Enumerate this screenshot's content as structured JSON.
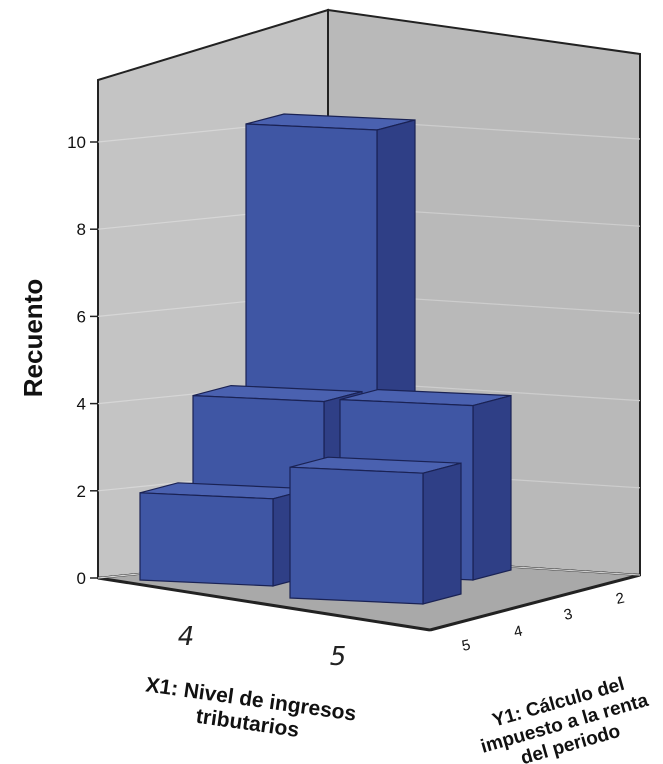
{
  "chart_data": {
    "type": "bar3d",
    "y_axis_label": "Recuento",
    "y_ticks": [
      "0",
      "2",
      "4",
      "6",
      "8",
      "10"
    ],
    "ylim": [
      0,
      10.5
    ],
    "x_axis_label_line1": "X1: Nivel de ingresos",
    "x_axis_label_line2": "tributarios",
    "x_categories": [
      "4",
      "5"
    ],
    "depth_axis_label_line1": "Y1: Cálculo del",
    "depth_axis_label_line2": "impuesto a la renta",
    "depth_axis_label_line3": "del periodo",
    "depth_categories": [
      "5",
      "4",
      "3",
      "2"
    ],
    "bars": [
      {
        "x": "4",
        "y1": "2",
        "count": 10
      },
      {
        "x": "4",
        "y1": "3",
        "count": 4
      },
      {
        "x": "5",
        "y1": "3",
        "count": 4
      },
      {
        "x": "4",
        "y1": "4",
        "count": 2
      },
      {
        "x": "5",
        "y1": "4",
        "count": 3
      }
    ],
    "colors": {
      "bar_front": "#3f56a4",
      "bar_side": "#2f3f86",
      "bar_top": "#4a61b0",
      "back_wall": "#c4c4c4",
      "side_wall": "#b7b7b7",
      "floor": "#a9a9a9"
    }
  }
}
